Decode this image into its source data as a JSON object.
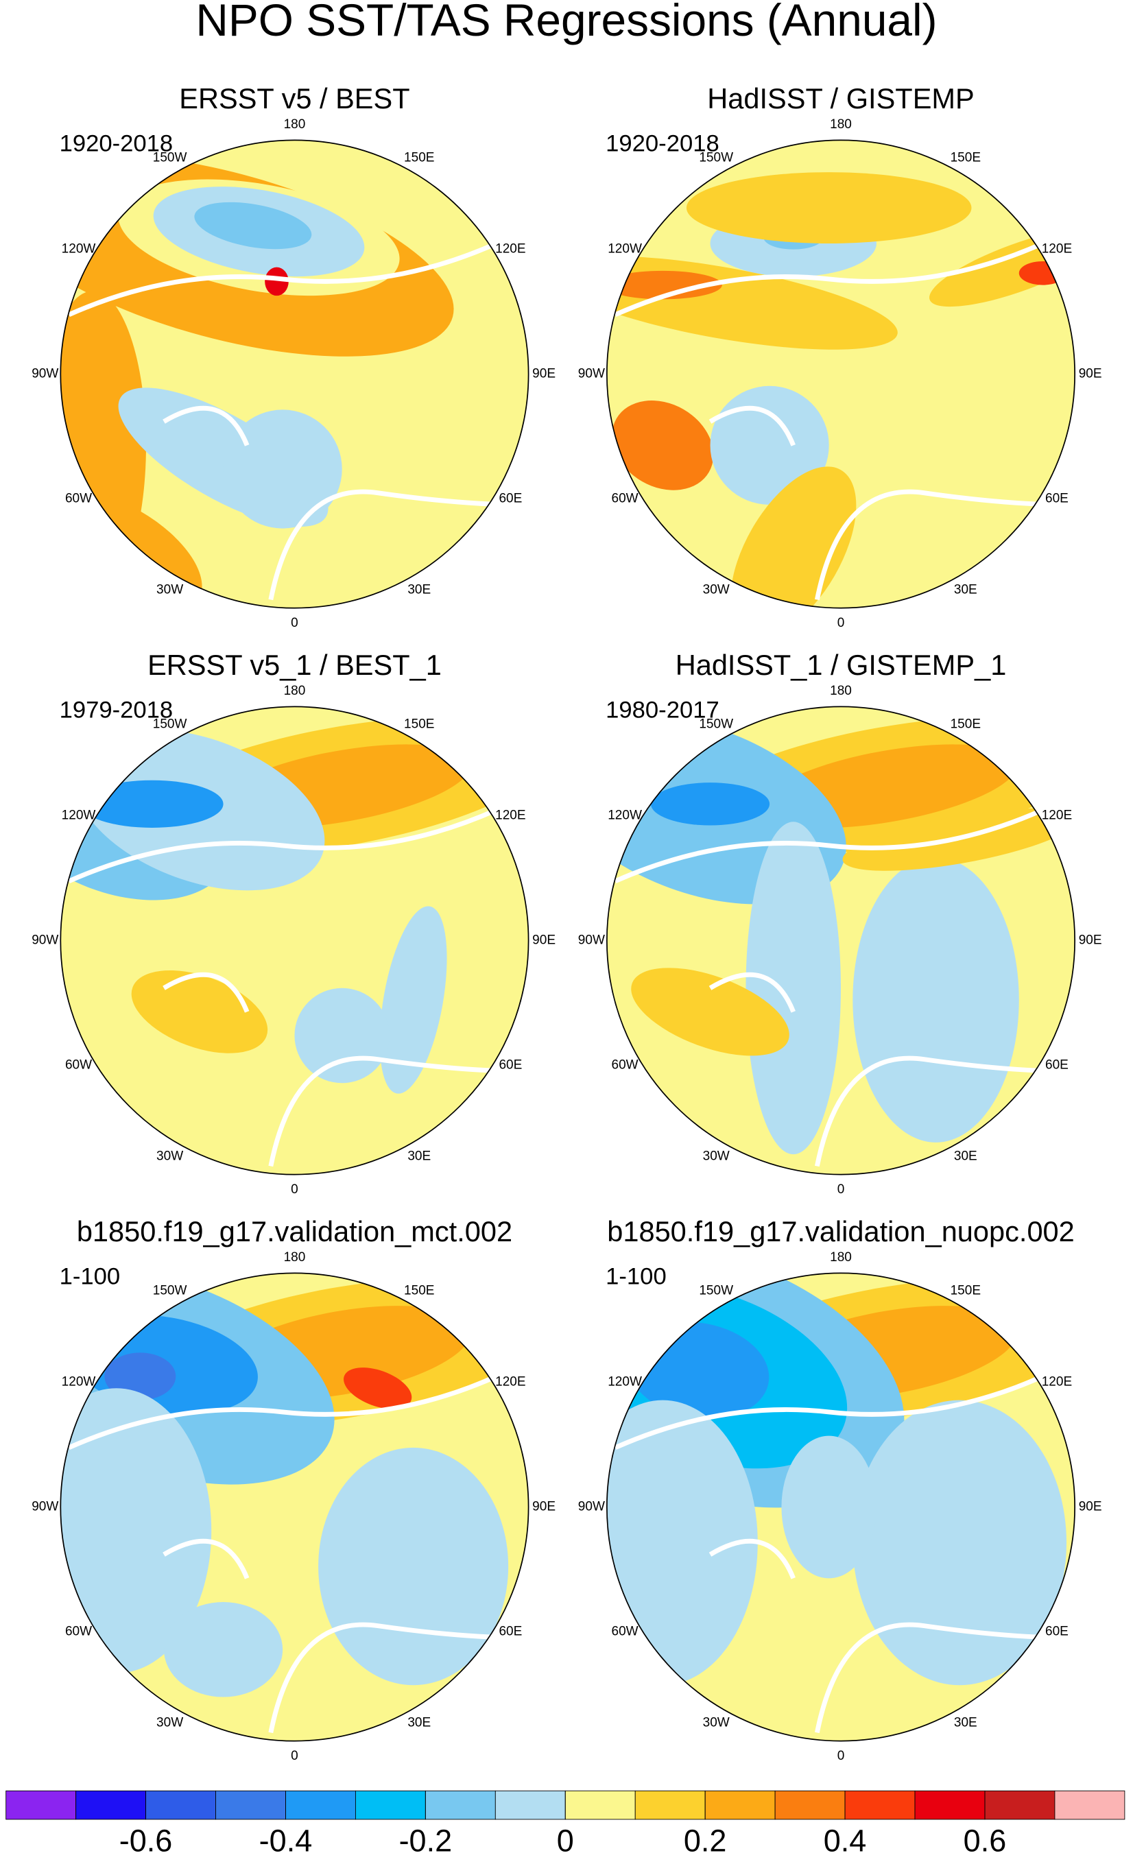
{
  "title": "NPO SST/TAS Regressions (Annual)",
  "longitude_labels": [
    "180",
    "150E",
    "120E",
    "90E",
    "60E",
    "30E",
    "0",
    "30W",
    "60W",
    "90W",
    "120W",
    "150W"
  ],
  "panels": [
    {
      "title": "ERSST v5 / BEST",
      "period": "1920-2018"
    },
    {
      "title": "HadISST / GISTEMP",
      "period": "1920-2018"
    },
    {
      "title": "ERSST v5_1 / BEST_1",
      "period": "1979-2018"
    },
    {
      "title": "HadISST_1 / GISTEMP_1",
      "period": "1980-2017"
    },
    {
      "title": "b1850.f19_g17.validation_mct.002",
      "period": "1-100"
    },
    {
      "title": "b1850.f19_g17.validation_nuopc.002",
      "period": "1-100"
    }
  ],
  "chart_data": {
    "type": "colorbar",
    "colors": [
      "#8b24f0",
      "#1e10f5",
      "#2e5ce8",
      "#3a7ae8",
      "#1f9af5",
      "#00bef5",
      "#78c8f0",
      "#b3def2",
      "#fbf78e",
      "#fcd12e",
      "#fcaa16",
      "#fa7e10",
      "#fa3c0c",
      "#e8000f",
      "#c81e1e",
      "#fbb4b4"
    ],
    "xlim": [
      -0.8,
      0.8
    ],
    "xticks": [
      -0.6,
      -0.4,
      -0.2,
      0,
      0.2,
      0.4,
      0.6
    ]
  }
}
